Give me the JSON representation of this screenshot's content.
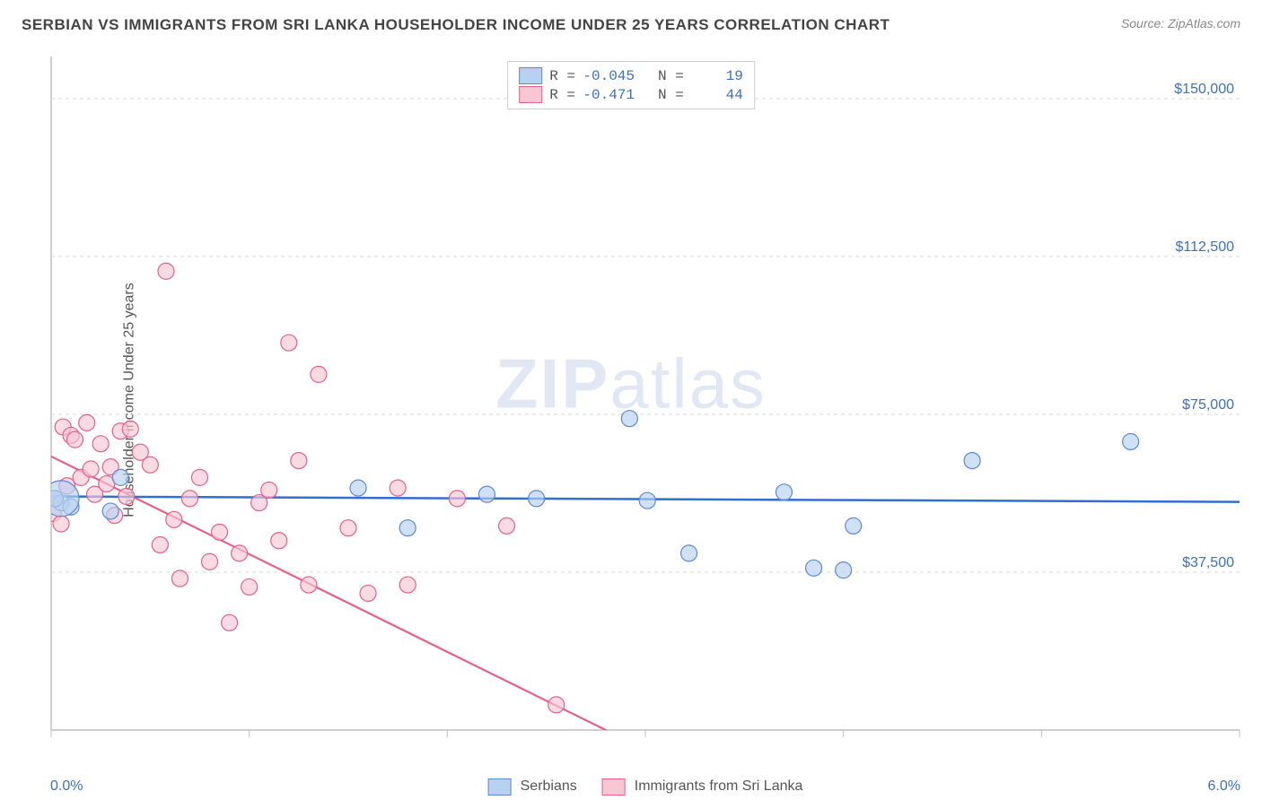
{
  "title": "SERBIAN VS IMMIGRANTS FROM SRI LANKA HOUSEHOLDER INCOME UNDER 25 YEARS CORRELATION CHART",
  "source": "Source: ZipAtlas.com",
  "watermark_a": "ZIP",
  "watermark_b": "atlas",
  "y_axis_label": "Householder Income Under 25 years",
  "x_min_label": "0.0%",
  "x_max_label": "6.0%",
  "chart": {
    "type": "scatter-with-regression",
    "x_range": [
      0.0,
      6.0
    ],
    "y_range": [
      0,
      160000
    ],
    "y_ticks": [
      37500,
      75000,
      112500,
      150000
    ],
    "y_tick_labels": [
      "$37,500",
      "$75,000",
      "$112,500",
      "$150,000"
    ],
    "x_ticks": [
      0,
      1,
      2,
      3,
      4,
      5,
      6
    ],
    "background": "#ffffff",
    "grid_color": "#d9d9d9",
    "border_color": "#bfbfbf",
    "tick_label_color": "#3b6fc9"
  },
  "series": {
    "serbians": {
      "label": "Serbians",
      "marker_fill": "#b8d1f0",
      "marker_stroke": "#5a8ad4",
      "line_color": "#2f6fd0",
      "swatch_fill": "#b8d1f0",
      "swatch_stroke": "#5a8ad4",
      "R": "-0.045",
      "N": "19",
      "reg_start": [
        0.0,
        55500
      ],
      "reg_end": [
        6.0,
        54200
      ],
      "points": [
        [
          0.02,
          55000
        ],
        [
          0.05,
          54000
        ],
        [
          0.1,
          53000
        ],
        [
          0.3,
          52000
        ],
        [
          0.35,
          60000
        ],
        [
          1.55,
          57500
        ],
        [
          1.8,
          48000
        ],
        [
          2.2,
          56000
        ],
        [
          2.45,
          55000
        ],
        [
          2.92,
          74000
        ],
        [
          3.01,
          54500
        ],
        [
          3.22,
          42000
        ],
        [
          3.7,
          56500
        ],
        [
          3.85,
          38500
        ],
        [
          4.0,
          38000
        ],
        [
          4.05,
          48500
        ],
        [
          4.65,
          64000
        ],
        [
          5.45,
          68500
        ],
        [
          0.02,
          55000
        ]
      ],
      "big_point": [
        0.05,
        55000
      ]
    },
    "sri_lanka": {
      "label": "Immigrants from Sri Lanka",
      "marker_fill": "#f7c7d5",
      "marker_stroke": "#e85f88",
      "line_color": "#e85f88",
      "swatch_fill": "#f7c7d5",
      "swatch_stroke": "#e85f88",
      "R": "-0.471",
      "N": "44",
      "reg_start": [
        0.0,
        65000
      ],
      "reg_end_solid": [
        2.8,
        0
      ],
      "reg_end_dash": [
        3.8,
        -23000
      ],
      "points": [
        [
          0.01,
          51500
        ],
        [
          0.05,
          49000
        ],
        [
          0.06,
          72000
        ],
        [
          0.08,
          58000
        ],
        [
          0.1,
          70000
        ],
        [
          0.12,
          69000
        ],
        [
          0.15,
          60000
        ],
        [
          0.18,
          73000
        ],
        [
          0.2,
          62000
        ],
        [
          0.22,
          56000
        ],
        [
          0.25,
          68000
        ],
        [
          0.28,
          58500
        ],
        [
          0.3,
          62500
        ],
        [
          0.32,
          51000
        ],
        [
          0.35,
          71000
        ],
        [
          0.38,
          55500
        ],
        [
          0.4,
          71500
        ],
        [
          0.45,
          66000
        ],
        [
          0.5,
          63000
        ],
        [
          0.55,
          44000
        ],
        [
          0.58,
          109000
        ],
        [
          0.62,
          50000
        ],
        [
          0.65,
          36000
        ],
        [
          0.7,
          55000
        ],
        [
          0.75,
          60000
        ],
        [
          0.8,
          40000
        ],
        [
          0.85,
          47000
        ],
        [
          0.9,
          25500
        ],
        [
          0.95,
          42000
        ],
        [
          1.0,
          34000
        ],
        [
          1.05,
          54000
        ],
        [
          1.1,
          57000
        ],
        [
          1.15,
          45000
        ],
        [
          1.2,
          92000
        ],
        [
          1.25,
          64000
        ],
        [
          1.3,
          34500
        ],
        [
          1.35,
          84500
        ],
        [
          1.5,
          48000
        ],
        [
          1.6,
          32500
        ],
        [
          1.75,
          57500
        ],
        [
          1.8,
          34500
        ],
        [
          2.05,
          55000
        ],
        [
          2.3,
          48500
        ],
        [
          2.55,
          6000
        ]
      ]
    }
  },
  "legend_top": {
    "r_label": "R =",
    "n_label": "N ="
  }
}
